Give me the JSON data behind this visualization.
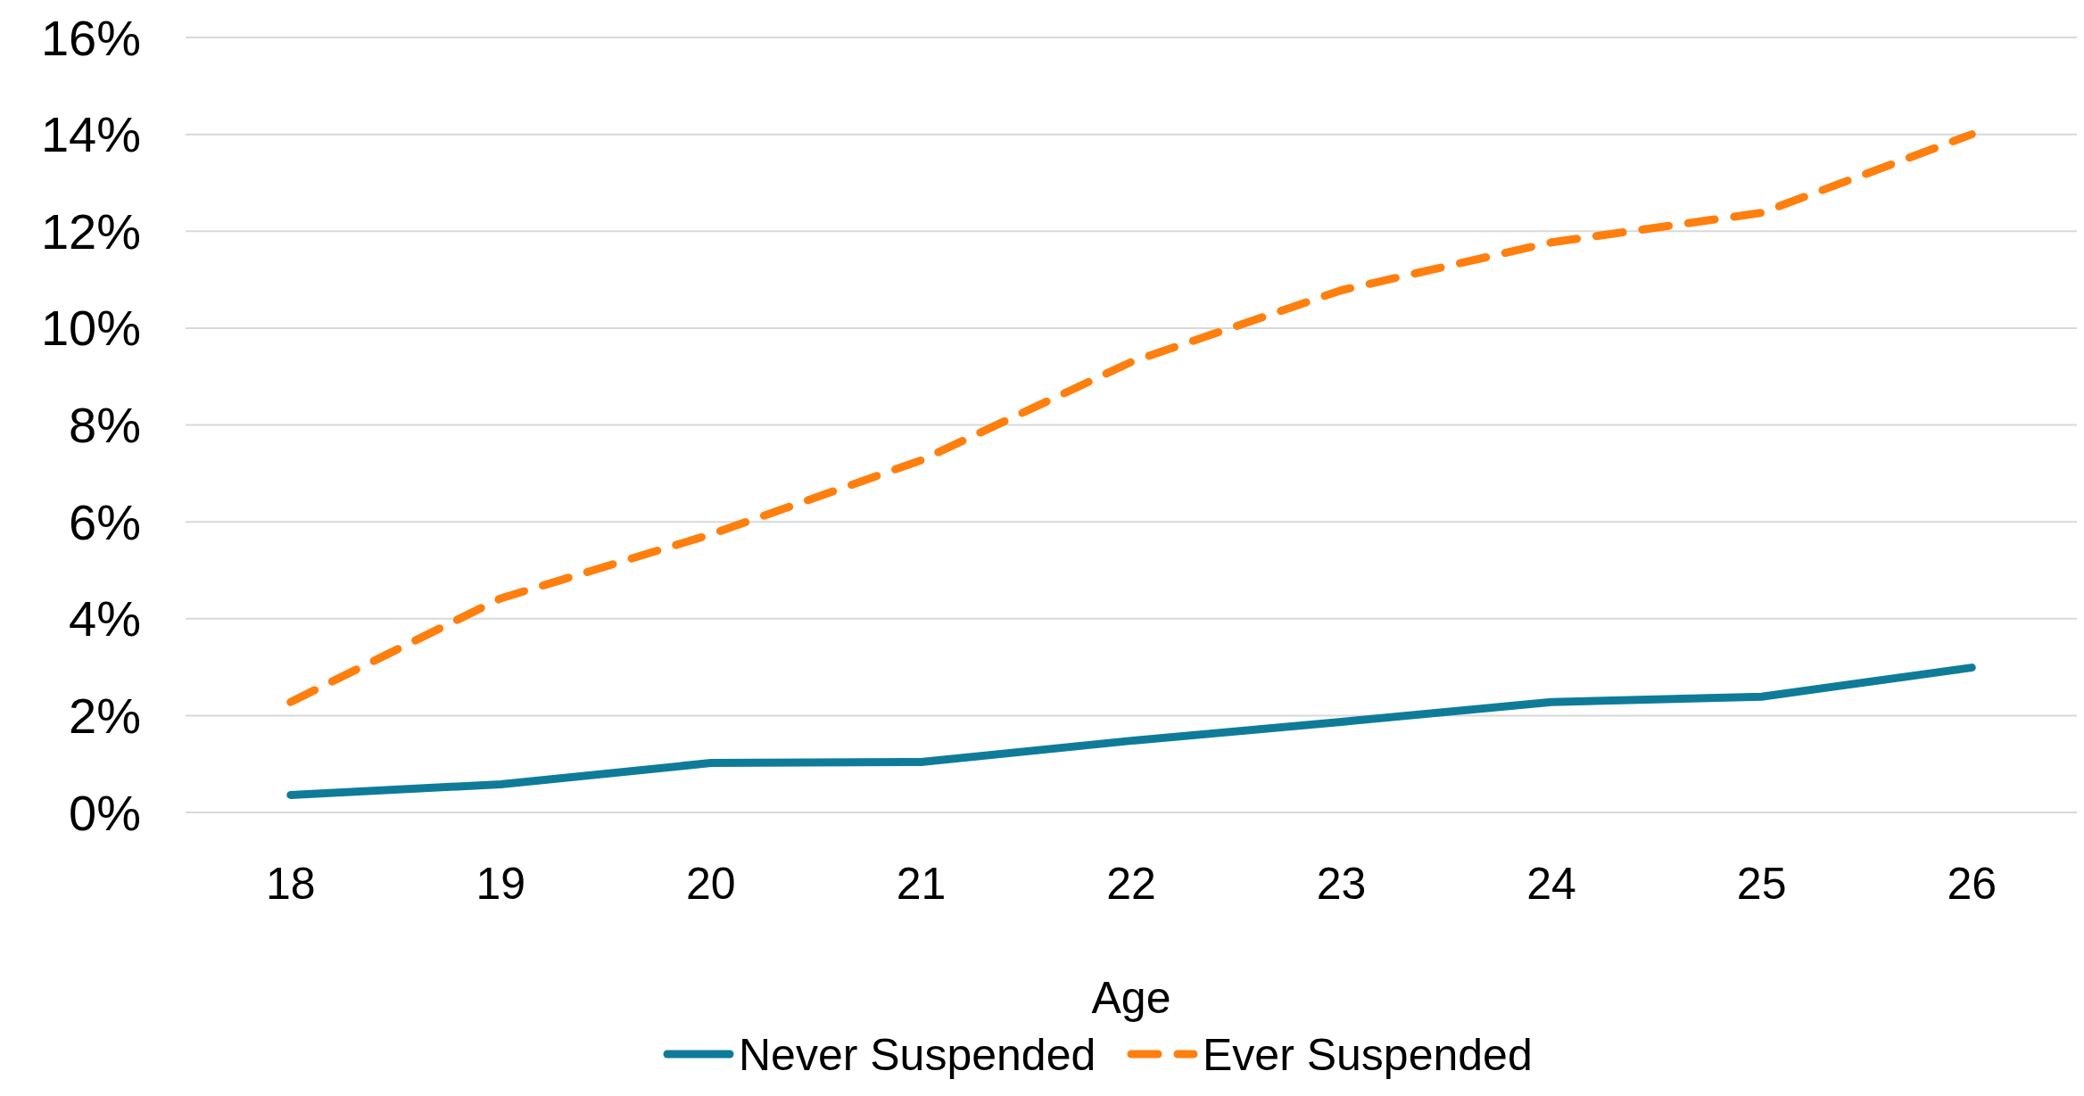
{
  "chart_data": {
    "type": "line",
    "xlabel": "Age",
    "categories": [
      "18",
      "19",
      "20",
      "21",
      "22",
      "23",
      "24",
      "25",
      "26"
    ],
    "series": [
      {
        "name": "Never Suspended",
        "color": "#0e7c99",
        "line_style": "solid",
        "values": [
          0.36,
          0.58,
          1.02,
          1.04,
          1.48,
          1.87,
          2.28,
          2.39,
          2.99
        ]
      },
      {
        "name": "Ever Suspended",
        "color": "#ff7f0e",
        "line_style": "dashed",
        "values": [
          2.28,
          4.42,
          5.74,
          7.27,
          9.3,
          10.78,
          11.77,
          12.38,
          14.0
        ]
      }
    ],
    "ylim": [
      0,
      16
    ],
    "yticks": [
      {
        "value": 0,
        "label": "0%"
      },
      {
        "value": 2,
        "label": "2%"
      },
      {
        "value": 4,
        "label": "4%"
      },
      {
        "value": 6,
        "label": "6%"
      },
      {
        "value": 8,
        "label": "8%"
      },
      {
        "value": 10,
        "label": "10%"
      },
      {
        "value": 12,
        "label": "12%"
      },
      {
        "value": 14,
        "label": "14%"
      },
      {
        "value": 16,
        "label": "16%"
      }
    ],
    "grid": "y",
    "legend": "bottom",
    "marker": "none"
  }
}
